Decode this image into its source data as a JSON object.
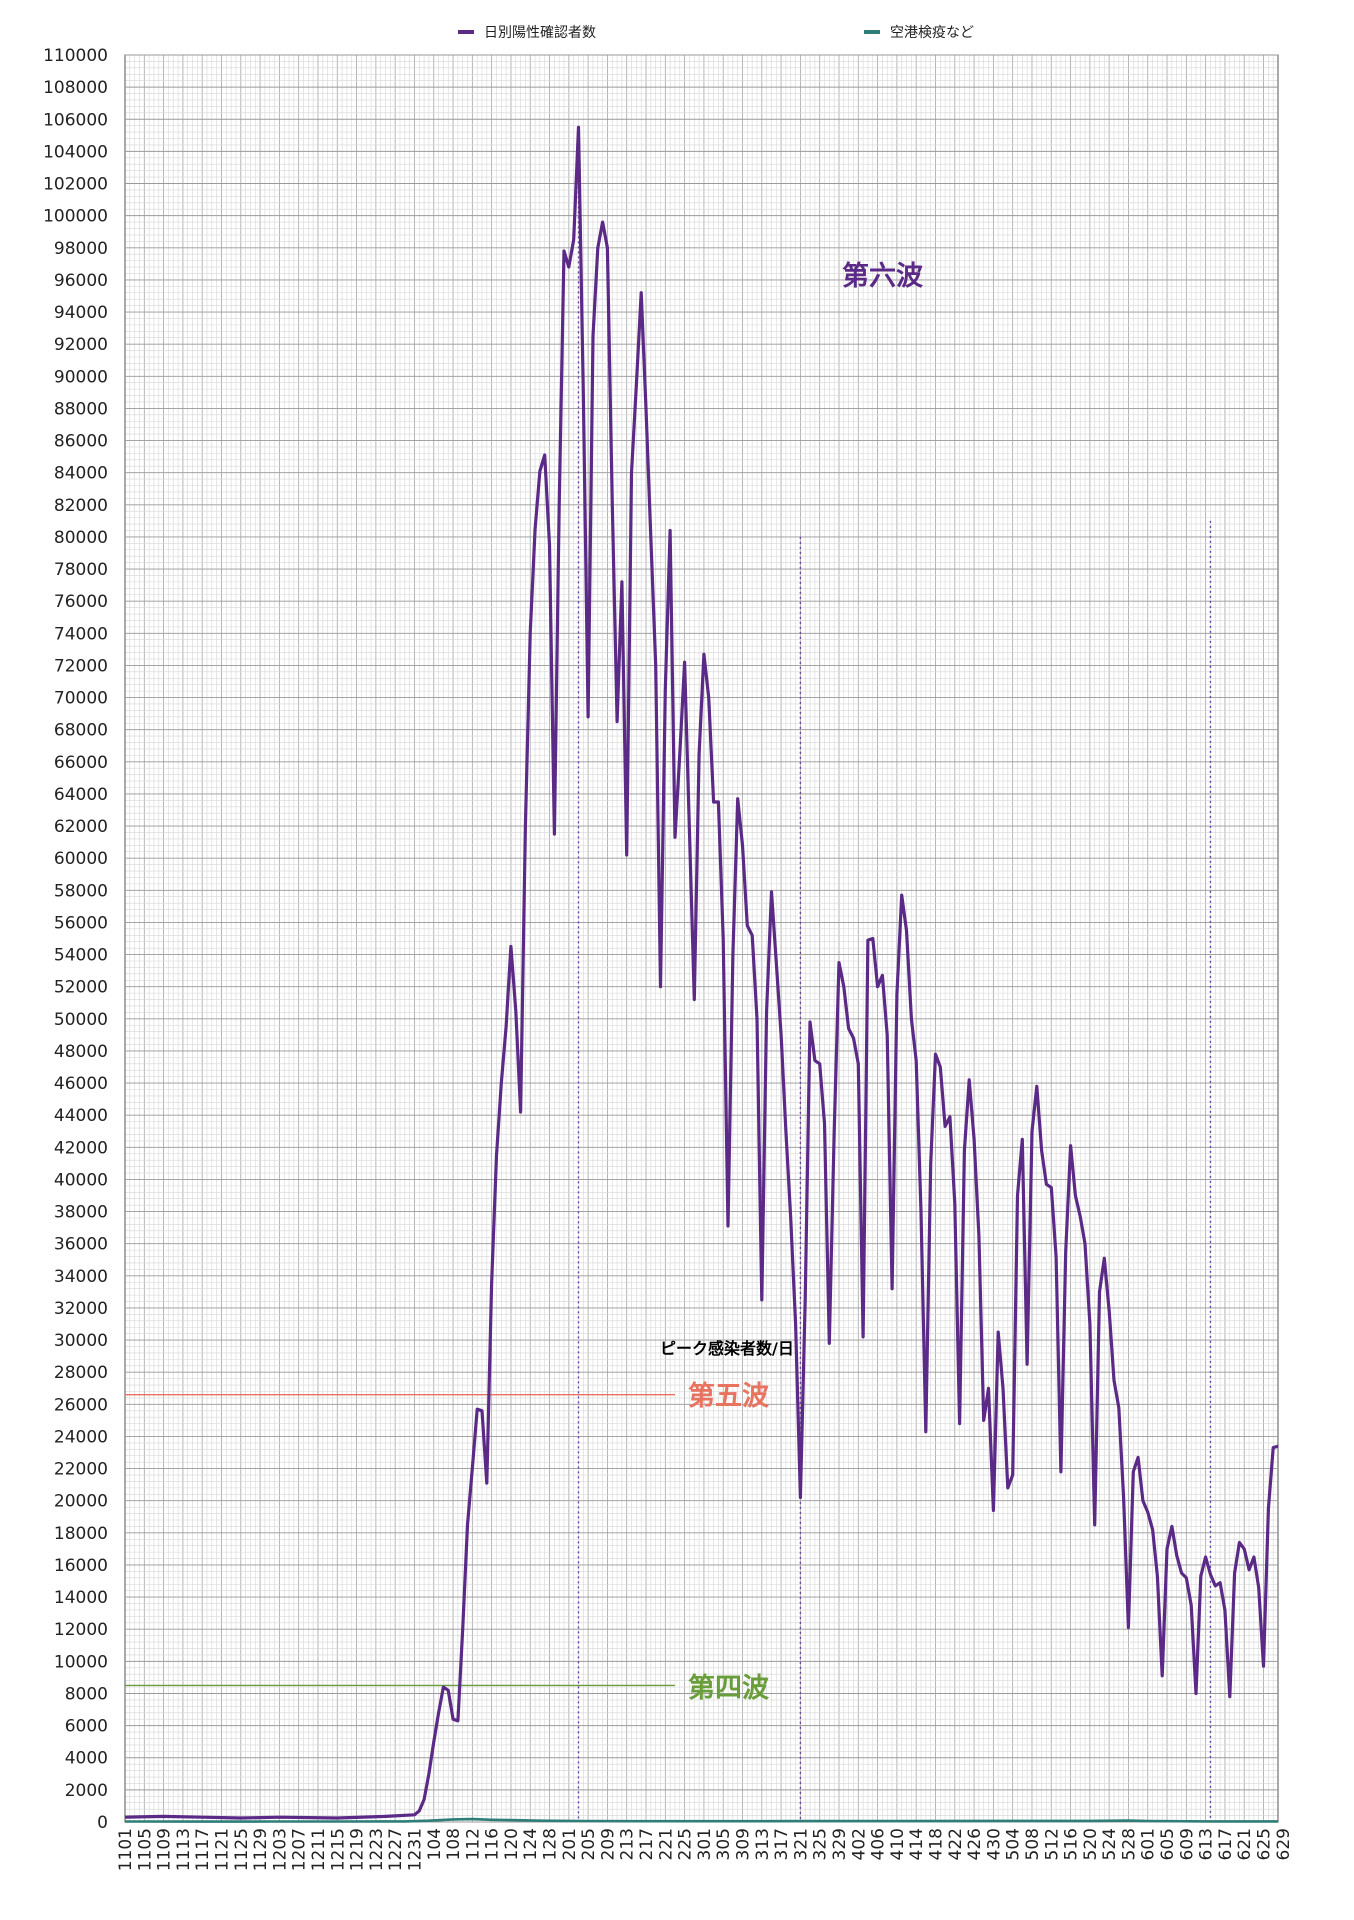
{
  "chart_data": {
    "type": "line",
    "legend": {
      "placement": "top",
      "items": [
        {
          "label": "日別陽性確認者数",
          "color": "#5b2a86"
        },
        {
          "label": "空港検疫など",
          "color": "#2f7d79"
        }
      ]
    },
    "ylim": [
      0,
      110000
    ],
    "ytick_step": 2000,
    "grid": true,
    "x_tick_labels": [
      "1101",
      "1105",
      "1109",
      "1113",
      "1117",
      "1121",
      "1125",
      "1129",
      "1203",
      "1207",
      "1211",
      "1215",
      "1219",
      "1223",
      "1227",
      "1231",
      "104",
      "108",
      "112",
      "116",
      "120",
      "124",
      "128",
      "201",
      "205",
      "209",
      "213",
      "217",
      "221",
      "225",
      "301",
      "305",
      "309",
      "313",
      "317",
      "321",
      "325",
      "329",
      "402",
      "406",
      "410",
      "414",
      "418",
      "422",
      "426",
      "430",
      "504",
      "508",
      "512",
      "516",
      "520",
      "524",
      "528",
      "601",
      "605",
      "609",
      "613",
      "617",
      "621",
      "625",
      "629"
    ],
    "series": [
      {
        "name": "日別陽性確認者数",
        "color": "#5b2a86",
        "points": [
          [
            0,
            300
          ],
          [
            8,
            350
          ],
          [
            16,
            300
          ],
          [
            24,
            250
          ],
          [
            32,
            300
          ],
          [
            44,
            250
          ],
          [
            54,
            350
          ],
          [
            60,
            450
          ],
          [
            61,
            700
          ],
          [
            62,
            1400
          ],
          [
            63,
            3000
          ],
          [
            64,
            5000
          ],
          [
            65,
            6800
          ],
          [
            66,
            8400
          ],
          [
            67,
            8200
          ],
          [
            68,
            6400
          ],
          [
            69,
            6300
          ],
          [
            70,
            12000
          ],
          [
            71,
            18500
          ],
          [
            72,
            22000
          ],
          [
            73,
            25700
          ],
          [
            74,
            25600
          ],
          [
            75,
            21100
          ],
          [
            76,
            33500
          ],
          [
            77,
            41500
          ],
          [
            78,
            46000
          ],
          [
            79,
            49500
          ],
          [
            80,
            54500
          ],
          [
            81,
            50500
          ],
          [
            82,
            44200
          ],
          [
            83,
            62000
          ],
          [
            84,
            74000
          ],
          [
            85,
            80500
          ],
          [
            86,
            84100
          ],
          [
            87,
            85100
          ],
          [
            88,
            79500
          ],
          [
            89,
            61500
          ],
          [
            90,
            82000
          ],
          [
            91,
            97800
          ],
          [
            92,
            96800
          ],
          [
            93,
            98500
          ],
          [
            94,
            105500
          ],
          [
            95,
            89000
          ],
          [
            96,
            68800
          ],
          [
            97,
            92500
          ],
          [
            98,
            98000
          ],
          [
            99,
            99600
          ],
          [
            100,
            98000
          ],
          [
            101,
            82000
          ],
          [
            102,
            68500
          ],
          [
            103,
            77200
          ],
          [
            104,
            60200
          ],
          [
            105,
            84000
          ],
          [
            106,
            89500
          ],
          [
            107,
            95200
          ],
          [
            108,
            88000
          ],
          [
            109,
            80000
          ],
          [
            110,
            72000
          ],
          [
            111,
            52000
          ],
          [
            112,
            70500
          ],
          [
            113,
            80400
          ],
          [
            114,
            61300
          ],
          [
            115,
            66500
          ],
          [
            116,
            72200
          ],
          [
            117,
            61800
          ],
          [
            118,
            51200
          ],
          [
            119,
            66500
          ],
          [
            120,
            72700
          ],
          [
            121,
            70000
          ],
          [
            122,
            63500
          ],
          [
            123,
            63500
          ],
          [
            124,
            55000
          ],
          [
            125,
            37100
          ],
          [
            126,
            54000
          ],
          [
            127,
            63700
          ],
          [
            128,
            60800
          ],
          [
            129,
            55800
          ],
          [
            130,
            55200
          ],
          [
            131,
            50000
          ],
          [
            132,
            32500
          ],
          [
            133,
            50500
          ],
          [
            134,
            57900
          ],
          [
            135,
            53500
          ],
          [
            136,
            49000
          ],
          [
            137,
            43000
          ],
          [
            138,
            37600
          ],
          [
            139,
            31000
          ],
          [
            140,
            20200
          ],
          [
            141,
            32500
          ],
          [
            142,
            49800
          ],
          [
            143,
            47400
          ],
          [
            144,
            47200
          ],
          [
            145,
            43500
          ],
          [
            146,
            29800
          ],
          [
            147,
            43000
          ],
          [
            148,
            53500
          ],
          [
            149,
            52000
          ],
          [
            150,
            49400
          ],
          [
            151,
            48800
          ],
          [
            152,
            47200
          ],
          [
            153,
            30200
          ],
          [
            154,
            54900
          ],
          [
            155,
            55000
          ],
          [
            156,
            52000
          ],
          [
            157,
            52700
          ],
          [
            158,
            49000
          ],
          [
            159,
            33200
          ],
          [
            160,
            51500
          ],
          [
            161,
            57700
          ],
          [
            162,
            55500
          ],
          [
            163,
            50000
          ],
          [
            164,
            47400
          ],
          [
            165,
            38000
          ],
          [
            166,
            24300
          ],
          [
            167,
            41000
          ],
          [
            168,
            47800
          ],
          [
            169,
            47000
          ],
          [
            170,
            43300
          ],
          [
            171,
            43900
          ],
          [
            172,
            38500
          ],
          [
            173,
            24800
          ],
          [
            174,
            41800
          ],
          [
            175,
            46200
          ],
          [
            176,
            42500
          ],
          [
            177,
            36500
          ],
          [
            178,
            25000
          ],
          [
            179,
            27000
          ],
          [
            180,
            19400
          ],
          [
            181,
            30500
          ],
          [
            182,
            27000
          ],
          [
            183,
            20800
          ],
          [
            184,
            21600
          ],
          [
            185,
            39000
          ],
          [
            186,
            42500
          ],
          [
            187,
            28500
          ],
          [
            188,
            43000
          ],
          [
            189,
            45800
          ],
          [
            190,
            41800
          ],
          [
            191,
            39700
          ],
          [
            192,
            39500
          ],
          [
            193,
            35200
          ],
          [
            194,
            21800
          ],
          [
            195,
            35500
          ],
          [
            196,
            42100
          ],
          [
            197,
            39000
          ],
          [
            198,
            37700
          ],
          [
            199,
            36000
          ],
          [
            200,
            31000
          ],
          [
            201,
            18500
          ],
          [
            202,
            33000
          ],
          [
            203,
            35100
          ],
          [
            204,
            31800
          ],
          [
            205,
            27500
          ],
          [
            206,
            25800
          ],
          [
            207,
            20200
          ],
          [
            208,
            12100
          ],
          [
            209,
            21800
          ],
          [
            210,
            22700
          ],
          [
            211,
            20000
          ],
          [
            212,
            19300
          ],
          [
            213,
            18200
          ],
          [
            214,
            15300
          ],
          [
            215,
            9100
          ],
          [
            216,
            17000
          ],
          [
            217,
            18400
          ],
          [
            218,
            16600
          ],
          [
            219,
            15500
          ],
          [
            220,
            15200
          ],
          [
            221,
            13500
          ],
          [
            222,
            8000
          ],
          [
            223,
            15300
          ],
          [
            224,
            16500
          ],
          [
            225,
            15400
          ],
          [
            226,
            14700
          ],
          [
            227,
            14900
          ],
          [
            228,
            13200
          ],
          [
            229,
            7800
          ],
          [
            230,
            15500
          ],
          [
            231,
            17400
          ],
          [
            232,
            17000
          ],
          [
            233,
            15700
          ],
          [
            234,
            16500
          ],
          [
            235,
            14600
          ],
          [
            236,
            9700
          ],
          [
            237,
            19500
          ],
          [
            238,
            23300
          ],
          [
            239,
            23400
          ]
        ]
      },
      {
        "name": "空港検疫など",
        "color": "#2f7d79",
        "points": [
          [
            0,
            30
          ],
          [
            15,
            25
          ],
          [
            30,
            30
          ],
          [
            45,
            30
          ],
          [
            58,
            40
          ],
          [
            63,
            80
          ],
          [
            68,
            160
          ],
          [
            72,
            180
          ],
          [
            76,
            140
          ],
          [
            80,
            120
          ],
          [
            86,
            80
          ],
          [
            95,
            60
          ],
          [
            110,
            50
          ],
          [
            125,
            50
          ],
          [
            140,
            55
          ],
          [
            160,
            55
          ],
          [
            180,
            70
          ],
          [
            200,
            70
          ],
          [
            208,
            90
          ],
          [
            212,
            60
          ],
          [
            225,
            40
          ],
          [
            239,
            40
          ]
        ]
      }
    ],
    "annotations": [
      {
        "text": "第六波",
        "color": "#5b2a86"
      },
      {
        "text": "ピーク感染者数/日",
        "color": "#000000"
      },
      {
        "text": "第五波",
        "color": "#e8735f"
      },
      {
        "text": "第四波",
        "color": "#6a9e3a"
      }
    ],
    "reference_lines": [
      {
        "name": "第五波",
        "value": 26600,
        "color": "#e8735f"
      },
      {
        "name": "第四波",
        "value": 8500,
        "color": "#6a9e3a"
      }
    ],
    "vertical_markers": [
      {
        "at_index": 94,
        "top_value": 104000
      },
      {
        "at_index": 140,
        "top_value": 80000
      },
      {
        "at_index": 225,
        "top_value": 81000
      }
    ]
  }
}
